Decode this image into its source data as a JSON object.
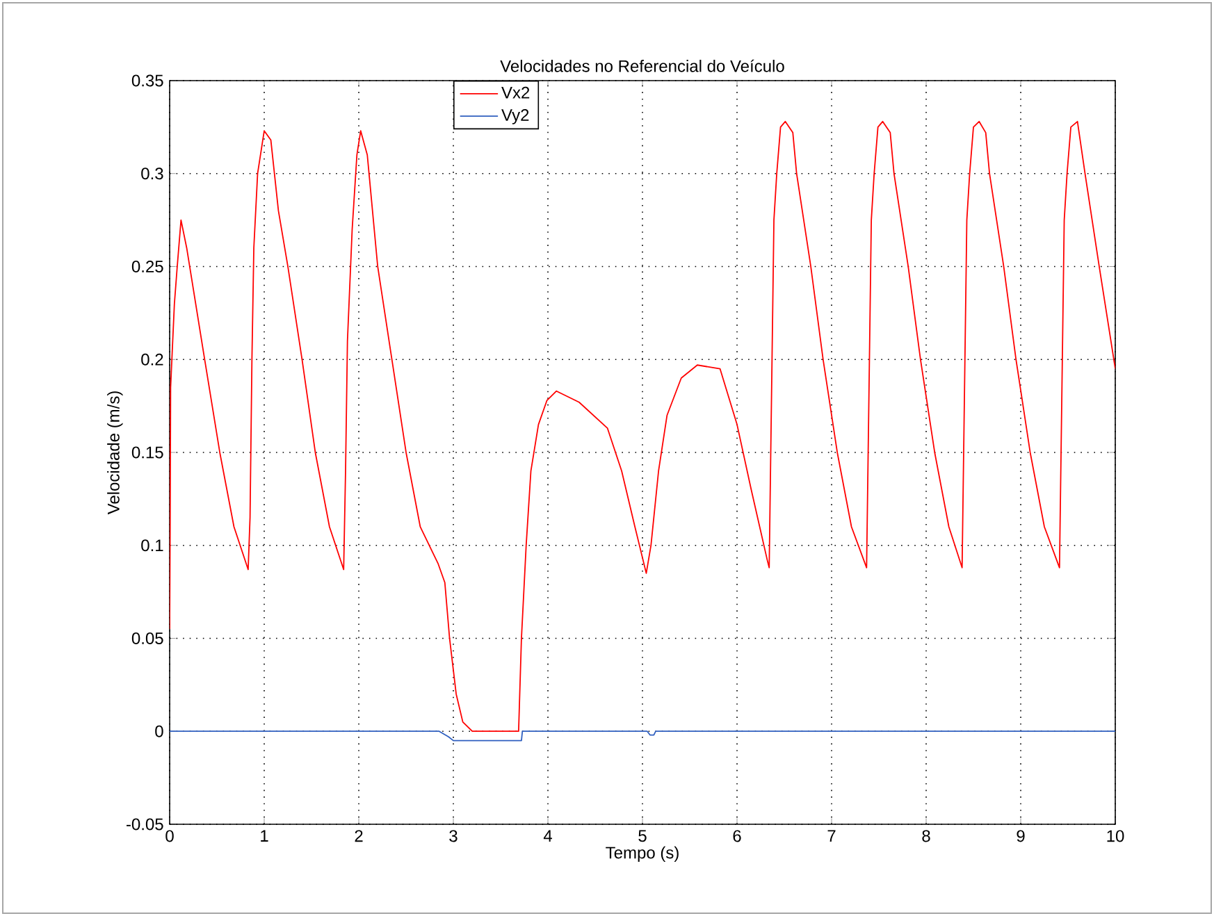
{
  "chart_data": {
    "type": "line",
    "title": "Velocidades no Referencial do Veículo",
    "xlabel": "Tempo (s)",
    "ylabel": "Velocidade (m/s)",
    "xlim": [
      0,
      10
    ],
    "ylim": [
      -0.05,
      0.35
    ],
    "xticks": [
      0,
      1,
      2,
      3,
      4,
      5,
      6,
      7,
      8,
      9,
      10
    ],
    "yticks": [
      -0.05,
      0,
      0.05,
      0.1,
      0.15,
      0.2,
      0.25,
      0.3,
      0.35
    ],
    "grid": true,
    "legend": "top",
    "marker": "none",
    "line_style": "solid",
    "series": [
      {
        "name": "Vx2",
        "color": "#ff0000",
        "x": [
          0,
          0.005,
          0.01,
          0.05,
          0.08,
          0.12,
          0.18,
          0.37,
          0.53,
          0.68,
          0.83,
          0.85,
          0.87,
          0.89,
          0.93,
          1.0,
          1.07,
          1.15,
          1.25,
          1.4,
          1.54,
          1.69,
          1.84,
          1.86,
          1.88,
          1.93,
          1.98,
          2.02,
          2.09,
          2.2,
          2.35,
          2.5,
          2.65,
          2.84,
          2.91,
          2.96,
          3.03,
          3.1,
          3.2,
          3.69,
          3.72,
          3.77,
          3.82,
          3.9,
          3.99,
          4.09,
          4.33,
          4.63,
          4.78,
          4.92,
          5.04,
          5.09,
          5.17,
          5.26,
          5.41,
          5.58,
          5.82,
          6.0,
          6.15,
          6.32,
          6.34,
          6.37,
          6.39,
          6.42,
          6.46,
          6.51,
          6.59,
          6.63,
          6.78,
          6.91,
          7.06,
          7.21,
          7.37,
          7.4,
          7.42,
          7.45,
          7.49,
          7.54,
          7.62,
          7.66,
          7.81,
          7.94,
          8.09,
          8.24,
          8.38,
          8.41,
          8.43,
          8.46,
          8.5,
          8.56,
          8.63,
          8.67,
          8.82,
          8.95,
          9.1,
          9.25,
          9.41,
          9.44,
          9.46,
          9.49,
          9.53,
          9.6,
          9.68,
          9.83,
          10
        ],
        "values": [
          0.055,
          0.11,
          0.185,
          0.23,
          0.25,
          0.275,
          0.26,
          0.2,
          0.15,
          0.11,
          0.087,
          0.115,
          0.2,
          0.26,
          0.3,
          0.323,
          0.318,
          0.28,
          0.25,
          0.2,
          0.15,
          0.11,
          0.087,
          0.14,
          0.21,
          0.27,
          0.31,
          0.323,
          0.31,
          0.25,
          0.2,
          0.15,
          0.11,
          0.09,
          0.08,
          0.05,
          0.02,
          0.005,
          0,
          0,
          0.05,
          0.1,
          0.14,
          0.165,
          0.178,
          0.183,
          0.177,
          0.163,
          0.14,
          0.11,
          0.085,
          0.1,
          0.14,
          0.17,
          0.19,
          0.197,
          0.195,
          0.165,
          0.13,
          0.092,
          0.088,
          0.2,
          0.275,
          0.3,
          0.325,
          0.328,
          0.322,
          0.3,
          0.25,
          0.2,
          0.15,
          0.11,
          0.088,
          0.2,
          0.275,
          0.3,
          0.325,
          0.328,
          0.322,
          0.3,
          0.25,
          0.2,
          0.15,
          0.11,
          0.088,
          0.2,
          0.275,
          0.3,
          0.325,
          0.328,
          0.322,
          0.3,
          0.25,
          0.2,
          0.15,
          0.11,
          0.088,
          0.2,
          0.275,
          0.3,
          0.325,
          0.328,
          0.3,
          0.25,
          0.195
        ]
      },
      {
        "name": "Vy2",
        "color": "#2f5fbf",
        "x": [
          0,
          2.85,
          2.95,
          3.0,
          3.72,
          3.73,
          5.05,
          5.08,
          5.12,
          5.14,
          10
        ],
        "values": [
          0,
          0,
          -0.003,
          -0.005,
          -0.005,
          0,
          0,
          -0.002,
          -0.002,
          0,
          0
        ]
      }
    ]
  }
}
